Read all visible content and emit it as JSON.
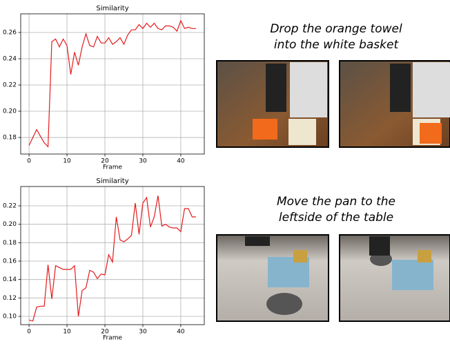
{
  "chart_data": [
    {
      "type": "line",
      "title": "Similarity",
      "x_label": "Frame",
      "x": [
        0,
        1,
        2,
        3,
        4,
        5,
        6,
        7,
        8,
        9,
        10,
        11,
        12,
        13,
        14,
        15,
        16,
        17,
        18,
        19,
        20,
        21,
        22,
        23,
        24,
        25,
        26,
        27,
        28,
        29,
        30,
        31,
        32,
        33,
        34,
        35,
        36,
        37,
        38,
        39,
        40,
        41,
        42,
        43,
        44
      ],
      "values": [
        0.174,
        0.18,
        0.186,
        0.181,
        0.176,
        0.173,
        0.253,
        0.255,
        0.249,
        0.255,
        0.25,
        0.228,
        0.245,
        0.235,
        0.249,
        0.259,
        0.25,
        0.249,
        0.257,
        0.252,
        0.252,
        0.256,
        0.251,
        0.253,
        0.256,
        0.251,
        0.258,
        0.262,
        0.262,
        0.266,
        0.263,
        0.267,
        0.264,
        0.267,
        0.263,
        0.262,
        0.265,
        0.265,
        0.264,
        0.261,
        0.269,
        0.263,
        0.264,
        0.263,
        0.263
      ],
      "color": "#e41a1c",
      "xlim": [
        -2.2,
        46.2
      ],
      "ylim": [
        0.1674,
        0.2742
      ],
      "xticks": [
        0,
        10,
        20,
        30,
        40
      ],
      "yticks": [
        0.18,
        {
          "value": 0.2,
          "label": "0.20"
        },
        0.22,
        0.24,
        0.26
      ],
      "grid": true
    },
    {
      "type": "line",
      "title": "Similarity",
      "x_label": "Frame",
      "x": [
        0,
        1,
        2,
        3,
        4,
        5,
        6,
        7,
        8,
        9,
        10,
        11,
        12,
        13,
        14,
        15,
        16,
        17,
        18,
        19,
        20,
        21,
        22,
        23,
        24,
        25,
        26,
        27,
        28,
        29,
        30,
        31,
        32,
        33,
        34,
        35,
        36,
        37,
        38,
        39,
        40,
        41,
        42,
        43,
        44
      ],
      "values": [
        0.096,
        0.095,
        0.11,
        0.111,
        0.111,
        0.156,
        0.119,
        0.155,
        0.153,
        0.151,
        0.151,
        0.151,
        0.155,
        0.1,
        0.128,
        0.131,
        0.15,
        0.148,
        0.141,
        0.146,
        0.145,
        0.167,
        0.159,
        0.208,
        0.183,
        0.181,
        0.184,
        0.188,
        0.223,
        0.189,
        0.223,
        0.229,
        0.197,
        0.208,
        0.231,
        0.198,
        0.2,
        0.197,
        0.196,
        0.196,
        0.192,
        0.217,
        0.217,
        0.208,
        0.208
      ],
      "color": "#e41a1c",
      "xlim": [
        -2.2,
        46.2
      ],
      "ylim": [
        0.091,
        0.241
      ],
      "xticks": [
        0,
        10,
        20,
        30,
        40
      ],
      "yticks": [
        {
          "value": 0.1,
          "label": "0.10"
        },
        0.12,
        0.14,
        0.16,
        0.18,
        {
          "value": 0.2,
          "label": "0.20"
        },
        0.22
      ],
      "grid": true
    }
  ],
  "captions": [
    [
      "Drop the orange towel",
      "into the white basket"
    ],
    [
      "Move the pan to the",
      "leftside of the table"
    ]
  ]
}
